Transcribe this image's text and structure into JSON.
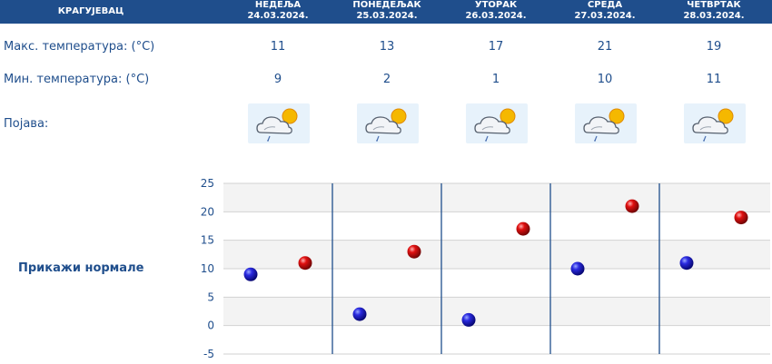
{
  "header": {
    "city": "КРАГУЈЕВАЦ"
  },
  "days": [
    {
      "name": "НЕДЕЉА",
      "date": "24.03.2024.",
      "max": "11",
      "min": "9",
      "icon": "partly-cloudy-rain-icon"
    },
    {
      "name": "ПОНЕДЕЉАК",
      "date": "25.03.2024.",
      "max": "13",
      "min": "2",
      "icon": "partly-cloudy-rain-icon"
    },
    {
      "name": "УТОРАК",
      "date": "26.03.2024.",
      "max": "17",
      "min": "1",
      "icon": "partly-cloudy-rain-icon"
    },
    {
      "name": "СРЕДА",
      "date": "27.03.2024.",
      "max": "21",
      "min": "10",
      "icon": "partly-cloudy-rain-icon"
    },
    {
      "name": "ЧЕТВРТАК",
      "date": "28.03.2024.",
      "max": "19",
      "min": "11",
      "icon": "partly-cloudy-rain-icon"
    }
  ],
  "labels": {
    "max": "Макс. температура: (°C)",
    "min": "Мин. температура: (°C)",
    "phenomenon": "Појава:"
  },
  "normals_link": "Прикажи нормале",
  "colors": {
    "header_bg": "#1f4e8c",
    "text": "#1f4e8c",
    "min_dot": "#0a0ab4",
    "max_dot": "#c40a0a"
  },
  "chart_data": {
    "type": "scatter",
    "ylim": [
      -5,
      25
    ],
    "yticks": [
      25,
      20,
      15,
      10,
      5,
      0,
      -5
    ],
    "series": [
      {
        "values": [
          9,
          2,
          1,
          10,
          11
        ],
        "color": "#0a0ab4"
      },
      {
        "values": [
          11,
          13,
          17,
          21,
          19
        ],
        "color": "#c40a0a"
      }
    ],
    "grid": true
  }
}
